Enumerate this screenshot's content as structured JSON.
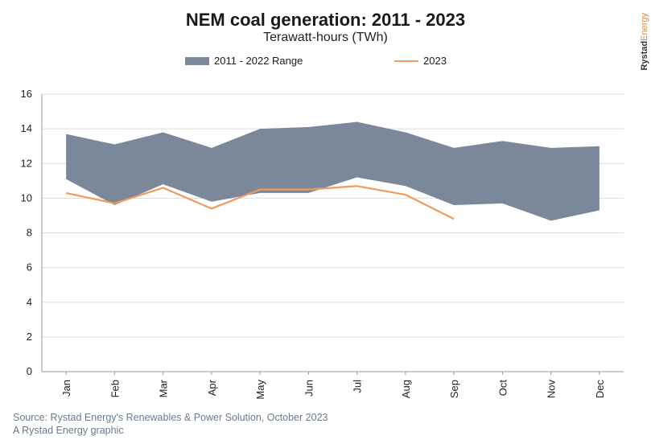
{
  "header": {
    "title": "NEM coal generation: 2011 - 2023",
    "subtitle": "Terawatt-hours (TWh)",
    "brand_a": "Rystad",
    "brand_b": "Energy"
  },
  "legend": {
    "range_label": "2011 - 2022 Range",
    "line_label": "2023"
  },
  "footer": {
    "source": "Source: Rystad Energy's Renewables & Power Solution, October 2023",
    "credit": "A Rystad Energy graphic"
  },
  "colors": {
    "range_fill": "#7b8899",
    "line_2023": "#ee9b5c",
    "grid": "#dddddd"
  },
  "chart_data": {
    "type": "area",
    "title": "NEM coal generation: 2011 - 2023",
    "subtitle": "Terawatt-hours (TWh)",
    "xlabel": "",
    "ylabel": "",
    "categories": [
      "Jan",
      "Feb",
      "Mar",
      "Apr",
      "May",
      "Jun",
      "Jul",
      "Aug",
      "Sep",
      "Oct",
      "Nov",
      "Dec"
    ],
    "ylim": [
      0,
      16
    ],
    "yticks": [
      0,
      2,
      4,
      6,
      8,
      10,
      12,
      14,
      16
    ],
    "grid": true,
    "legend_position": "top",
    "series": [
      {
        "name": "2011 - 2022 Range",
        "kind": "range",
        "low": [
          11.1,
          9.6,
          10.8,
          9.8,
          10.3,
          10.3,
          11.2,
          10.7,
          9.6,
          9.7,
          8.7,
          9.3
        ],
        "high": [
          13.7,
          13.1,
          13.8,
          12.9,
          14.0,
          14.1,
          14.4,
          13.8,
          12.9,
          13.3,
          12.9,
          13.0
        ]
      },
      {
        "name": "2023",
        "kind": "line",
        "values": [
          10.3,
          9.7,
          10.6,
          9.4,
          10.5,
          10.5,
          10.7,
          10.2,
          8.8,
          null,
          null,
          null
        ]
      }
    ]
  }
}
